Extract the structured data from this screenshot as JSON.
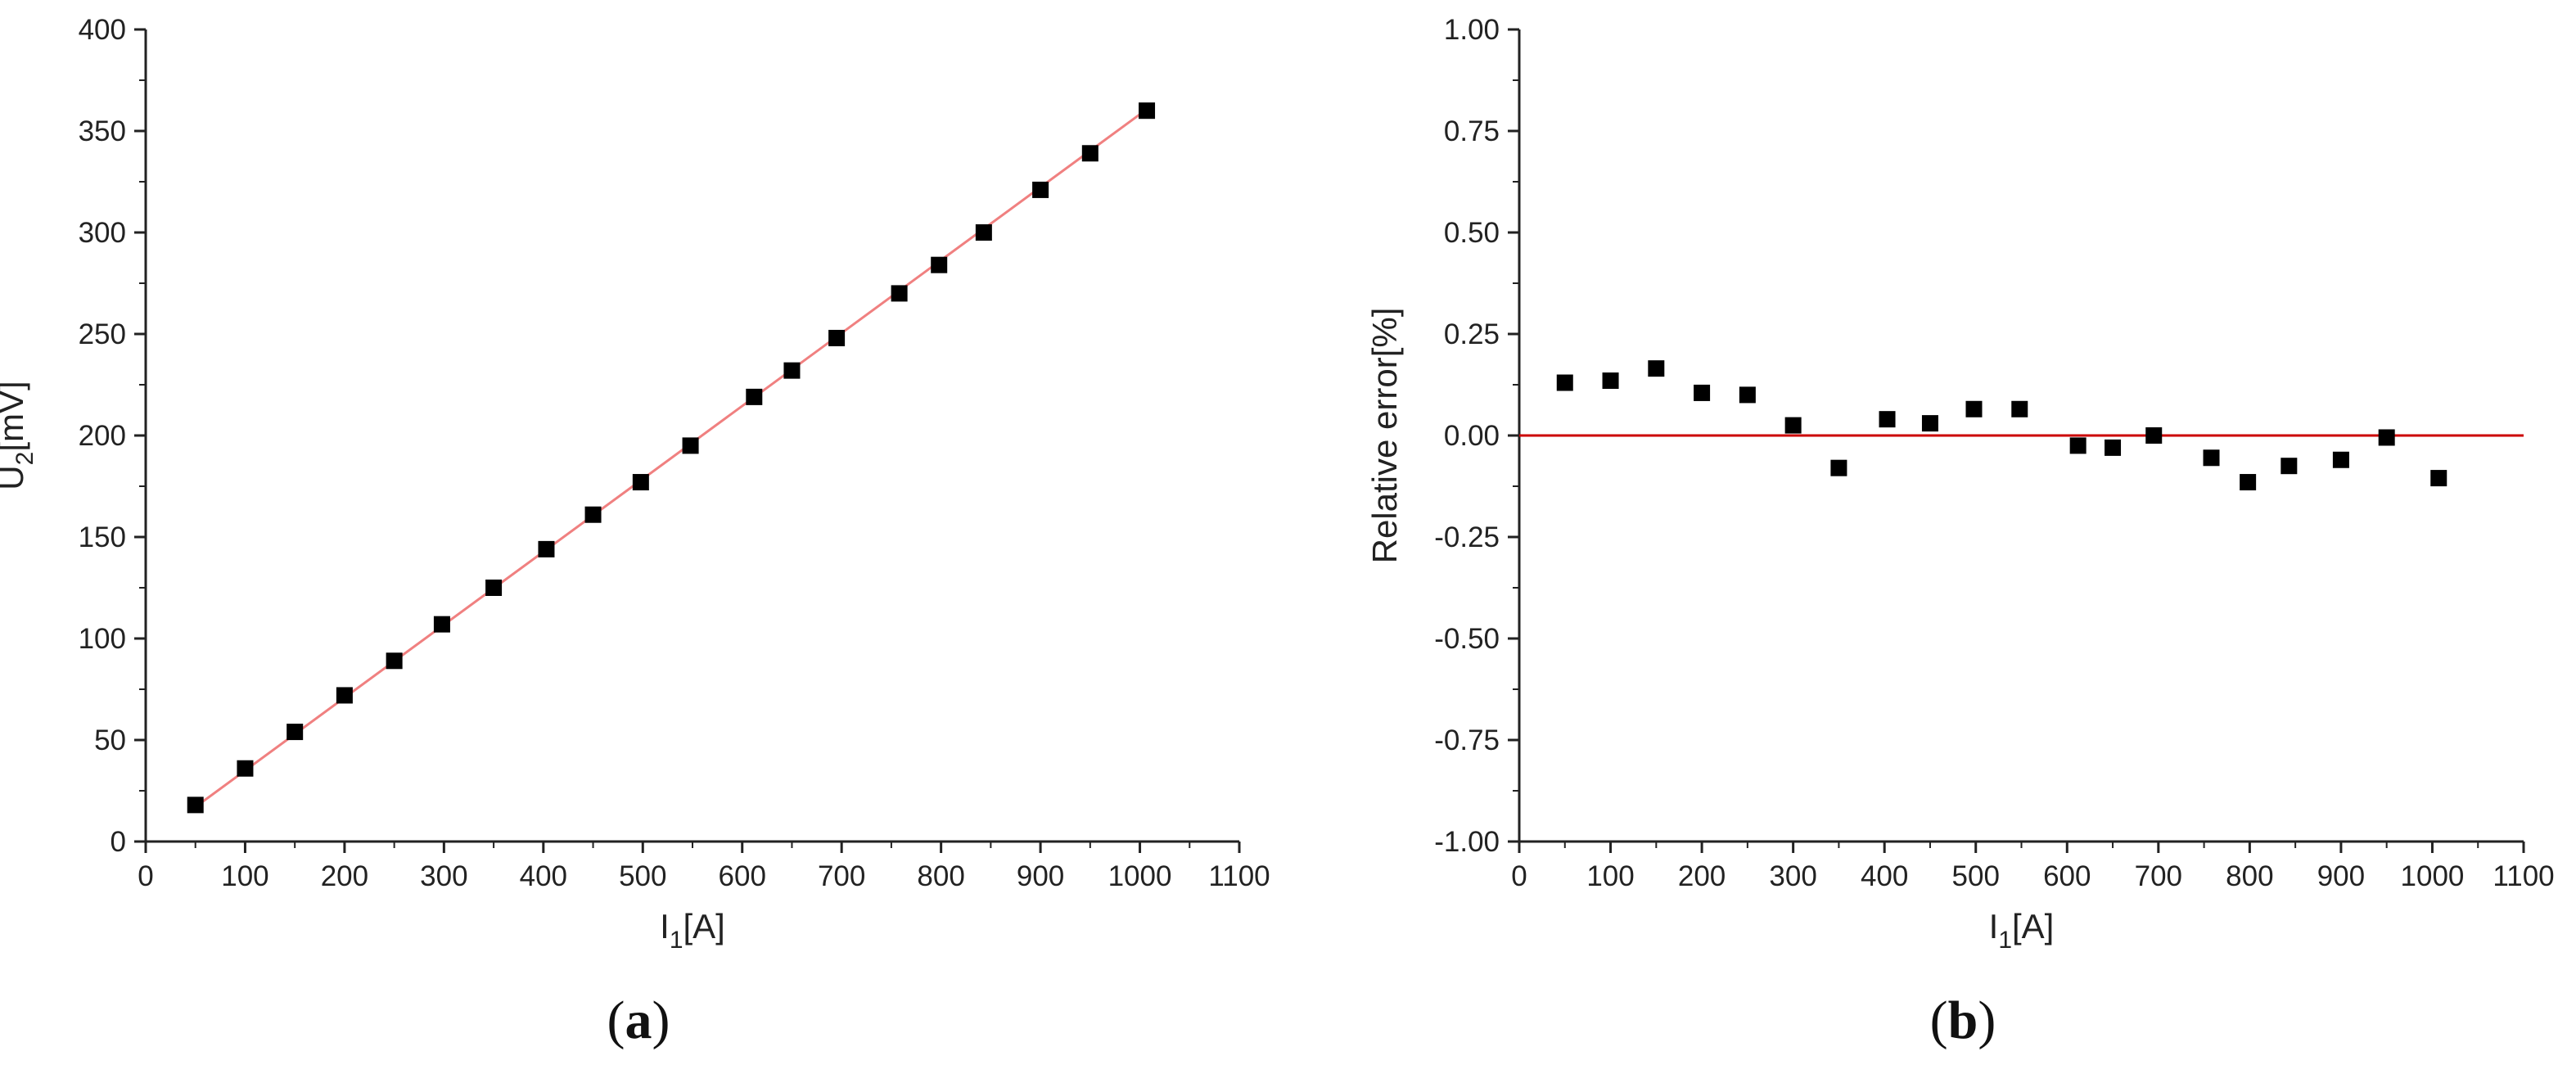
{
  "figure": {
    "panels": [
      {
        "label": "(a)",
        "letter": "a"
      },
      {
        "label": "(b)",
        "letter": "b"
      }
    ]
  },
  "colors": {
    "marker": "#000000",
    "fit_line": "#f08080",
    "zero_line": "#cc0000",
    "axis": "#222222"
  },
  "chart_data": [
    {
      "type": "scatter",
      "panel": "(a)",
      "xlabel": {
        "main": "I",
        "sub": "1",
        "unit": "[A]"
      },
      "ylabel": {
        "main": "U",
        "sub": "2",
        "unit": "[mV]"
      },
      "xlim": [
        0,
        1100
      ],
      "ylim": [
        0,
        400
      ],
      "xticks": [
        "0",
        "100",
        "200",
        "300",
        "400",
        "500",
        "600",
        "700",
        "800",
        "900",
        "1000",
        "1100"
      ],
      "yticks": [
        "0",
        "50",
        "100",
        "150",
        "200",
        "250",
        "300",
        "350",
        "400"
      ],
      "grid": false,
      "fit_line": {
        "from": [
          50,
          17
        ],
        "to": [
          1005,
          360
        ]
      },
      "series": [
        {
          "x": [
            50,
            100,
            150,
            200,
            250,
            298,
            350,
            403,
            450,
            498,
            548,
            612,
            650,
            695,
            758,
            798,
            843,
            900,
            950,
            1007
          ],
          "y": [
            18,
            36,
            54,
            72,
            89,
            107,
            125,
            144,
            161,
            177,
            195,
            219,
            232,
            248,
            270,
            284,
            300,
            321,
            339,
            360
          ]
        }
      ]
    },
    {
      "type": "scatter",
      "panel": "(b)",
      "xlabel": {
        "main": "I",
        "sub": "1",
        "unit": "[A]"
      },
      "ylabel": {
        "text": "Relative error[%]"
      },
      "xlim": [
        0,
        1100
      ],
      "ylim": [
        -1.0,
        1.0
      ],
      "xticks": [
        "0",
        "100",
        "200",
        "300",
        "400",
        "500",
        "600",
        "700",
        "800",
        "900",
        "1000",
        "1100"
      ],
      "yticks": [
        "-1.00",
        "-0.75",
        "-0.50",
        "-0.25",
        "0.00",
        "0.25",
        "0.50",
        "0.75",
        "1.00"
      ],
      "grid": false,
      "reference_line_y": 0,
      "series": [
        {
          "x": [
            50,
            100,
            150,
            200,
            250,
            300,
            350,
            403,
            450,
            498,
            548,
            612,
            650,
            695,
            758,
            798,
            843,
            900,
            950,
            1007
          ],
          "y": [
            0.13,
            0.135,
            0.165,
            0.105,
            0.1,
            0.025,
            -0.08,
            0.04,
            0.03,
            0.065,
            0.065,
            -0.025,
            -0.03,
            0.0,
            -0.055,
            -0.115,
            -0.075,
            -0.06,
            -0.005,
            -0.105
          ]
        }
      ]
    }
  ]
}
